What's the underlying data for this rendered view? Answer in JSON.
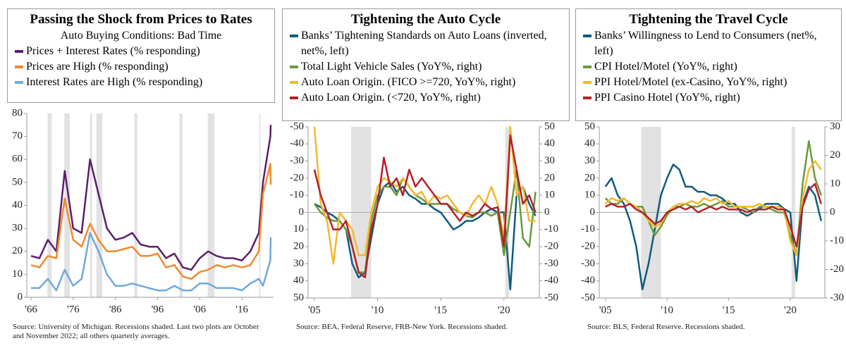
{
  "chart_data": [
    {
      "type": "line",
      "title": "Passing the Shock from Prices to Rates",
      "legend_title": "Auto Buying Conditions: Bad Time",
      "x": [
        1966,
        1968,
        1970,
        1972,
        1974,
        1976,
        1978,
        1980,
        1982,
        1984,
        1986,
        1988,
        1990,
        1992,
        1994,
        1996,
        1998,
        2000,
        2002,
        2004,
        2006,
        2008,
        2010,
        2012,
        2014,
        2016,
        2018,
        2020,
        2021,
        2022.75,
        2022.83
      ],
      "xlim": [
        1965,
        2023.5
      ],
      "xticks": [
        {
          "value": 1966,
          "label": "'66"
        },
        {
          "value": 1976,
          "label": "'76"
        },
        {
          "value": 1986,
          "label": "'86"
        },
        {
          "value": 1996,
          "label": "'96"
        },
        {
          "value": 2006,
          "label": "'06"
        },
        {
          "value": 2016,
          "label": "'16"
        }
      ],
      "ylim": [
        0,
        80
      ],
      "yticks": [
        0,
        10,
        20,
        30,
        40,
        50,
        60,
        70,
        80
      ],
      "recessions": [
        [
          1969.9,
          1970.9
        ],
        [
          1973.9,
          1975.2
        ],
        [
          1980.0,
          1980.5
        ],
        [
          1981.5,
          1982.9
        ],
        [
          1990.5,
          1991.2
        ],
        [
          2001.2,
          2001.9
        ],
        [
          2007.9,
          2009.5
        ],
        [
          2020.1,
          2020.4
        ]
      ],
      "series": [
        {
          "name": "Prices + Interest Rates (% responding)",
          "color": "#5b1f6b",
          "values": [
            18,
            17,
            25,
            20,
            55,
            30,
            28,
            60,
            45,
            30,
            25,
            26,
            28,
            23,
            22,
            22,
            17,
            19,
            13,
            12,
            17,
            20,
            18,
            17,
            17,
            16,
            20,
            28,
            50,
            70,
            75
          ]
        },
        {
          "name": "Prices are High (% responding)",
          "color": "#f08a2c",
          "values": [
            14,
            13,
            18,
            17,
            43,
            25,
            22,
            32,
            25,
            20,
            20,
            21,
            22,
            18,
            18,
            19,
            13,
            14,
            9,
            8,
            11,
            12,
            14,
            13,
            14,
            13,
            14,
            20,
            45,
            58,
            49
          ]
        },
        {
          "name": "Interest Rates are High (% responding)",
          "color": "#6fa8dc",
          "values": [
            4,
            4,
            8,
            3,
            12,
            5,
            8,
            28,
            20,
            10,
            5,
            5,
            6,
            5,
            4,
            3,
            3,
            5,
            3,
            3,
            6,
            6,
            4,
            4,
            4,
            3,
            6,
            8,
            5,
            16,
            26
          ]
        }
      ],
      "source": "Source: University of Michigan. Recessions shaded. Last two plots are October and November 2022; all others quarterly averages."
    },
    {
      "type": "line",
      "title": "Tightening the Auto Cycle",
      "x": [
        2005,
        2005.5,
        2006,
        2006.5,
        2007,
        2007.5,
        2008,
        2008.5,
        2009,
        2009.5,
        2010,
        2010.5,
        2011,
        2011.5,
        2012,
        2012.5,
        2013,
        2013.5,
        2014,
        2014.5,
        2015,
        2015.5,
        2016,
        2016.5,
        2017,
        2017.5,
        2018,
        2018.5,
        2019,
        2019.5,
        2020,
        2020.5,
        2021,
        2021.5,
        2022,
        2022.5
      ],
      "xlim": [
        2004.5,
        2022.8
      ],
      "xticks": [
        {
          "value": 2005,
          "label": "'05"
        },
        {
          "value": 2010,
          "label": "'10"
        },
        {
          "value": 2015,
          "label": "'15"
        },
        {
          "value": 2020,
          "label": "'20"
        }
      ],
      "ylim": [
        50,
        -50
      ],
      "yticks": [
        -50,
        -40,
        -30,
        -20,
        -10,
        0,
        10,
        20,
        30,
        40,
        50
      ],
      "y2lim": [
        -50,
        50
      ],
      "y2ticks": [
        -50,
        -40,
        -30,
        -20,
        -10,
        0,
        10,
        20,
        30,
        40,
        50
      ],
      "recessions": [
        [
          2007.9,
          2009.5
        ],
        [
          2020.1,
          2020.4
        ]
      ],
      "series": [
        {
          "name": "Banks’ Tightening Standards on Auto Loans (inverted, net%, left)",
          "color": "#0e5c7e",
          "values": [
            -5,
            -3,
            0,
            2,
            5,
            10,
            30,
            38,
            35,
            15,
            -5,
            -15,
            -18,
            -12,
            -15,
            -10,
            -8,
            -5,
            -5,
            -2,
            0,
            5,
            10,
            8,
            5,
            5,
            3,
            0,
            -2,
            0,
            0,
            45,
            -10,
            -15,
            -5,
            2
          ]
        },
        {
          "name": "Total Light Vehicle Sales (YoY%, right)",
          "color": "#6a9a3a",
          "axis": "y2",
          "values": [
            5,
            0,
            -3,
            -5,
            -5,
            -10,
            -20,
            -35,
            -35,
            -5,
            10,
            15,
            15,
            10,
            20,
            15,
            10,
            8,
            5,
            5,
            5,
            5,
            2,
            0,
            -2,
            -3,
            0,
            0,
            -2,
            0,
            -25,
            0,
            25,
            -15,
            -20,
            12
          ]
        },
        {
          "name": "Auto Loan Origin. (FICO >=720, YoY%, right)",
          "color": "#f5b82e",
          "axis": "y2",
          "values": [
            50,
            5,
            -5,
            -30,
            0,
            -5,
            -10,
            -25,
            -25,
            0,
            15,
            20,
            18,
            15,
            20,
            15,
            10,
            12,
            5,
            10,
            8,
            10,
            5,
            0,
            -2,
            5,
            10,
            5,
            15,
            5,
            -15,
            50,
            10,
            15,
            -5,
            -5
          ]
        },
        {
          "name": "Auto Loan Origin. (<720, YoY%, right)",
          "color": "#b3202a",
          "axis": "y2",
          "values": [
            25,
            10,
            0,
            -10,
            -10,
            -5,
            -20,
            -35,
            -38,
            -10,
            5,
            32,
            15,
            20,
            10,
            25,
            15,
            20,
            15,
            10,
            5,
            5,
            0,
            -5,
            0,
            -2,
            0,
            5,
            2,
            3,
            -20,
            45,
            25,
            5,
            10,
            0
          ]
        }
      ],
      "source": "Source: BEA, Federal Reserve, FRB-New York. Recessions shaded."
    },
    {
      "type": "line",
      "title": "Tightening the Travel Cycle",
      "x": [
        2005,
        2005.5,
        2006,
        2006.5,
        2007,
        2007.5,
        2008,
        2008.5,
        2009,
        2009.5,
        2010,
        2010.5,
        2011,
        2011.5,
        2012,
        2012.5,
        2013,
        2013.5,
        2014,
        2014.5,
        2015,
        2015.5,
        2016,
        2016.5,
        2017,
        2017.5,
        2018,
        2018.5,
        2019,
        2019.5,
        2020,
        2020.5,
        2021,
        2021.5,
        2022,
        2022.5
      ],
      "xlim": [
        2004.5,
        2022.8
      ],
      "xticks": [
        {
          "value": 2005,
          "label": "'05"
        },
        {
          "value": 2010,
          "label": "'10"
        },
        {
          "value": 2015,
          "label": "'15"
        },
        {
          "value": 2020,
          "label": "'20"
        }
      ],
      "ylim": [
        -50,
        50
      ],
      "yticks": [
        -50,
        -40,
        -30,
        -20,
        -10,
        0,
        10,
        20,
        30,
        40,
        50
      ],
      "y2lim": [
        -30,
        30
      ],
      "y2ticks": [
        -30,
        -20,
        -10,
        0,
        10,
        20,
        30
      ],
      "recessions": [
        [
          2007.9,
          2009.5
        ],
        [
          2020.1,
          2020.4
        ]
      ],
      "series": [
        {
          "name": "Banks’ Willingness to Lend to Consumers (net%, left)",
          "color": "#0e5c7e",
          "values": [
            15,
            20,
            10,
            5,
            -5,
            -20,
            -45,
            -30,
            -10,
            10,
            20,
            28,
            25,
            15,
            15,
            12,
            12,
            10,
            10,
            8,
            5,
            5,
            0,
            -2,
            0,
            2,
            5,
            5,
            5,
            2,
            0,
            -40,
            5,
            15,
            10,
            -5
          ]
        },
        {
          "name": "CPI Hotel/Motel (YoY%, right)",
          "color": "#6a9a3a",
          "axis": "y2",
          "values": [
            5,
            3,
            3,
            5,
            3,
            2,
            2,
            -3,
            -8,
            -5,
            -1,
            2,
            2,
            3,
            2,
            2,
            3,
            2,
            3,
            4,
            2,
            2,
            2,
            1,
            0,
            2,
            2,
            1,
            0,
            0,
            -8,
            -15,
            10,
            25,
            12,
            6
          ]
        },
        {
          "name": "PPI Hotel/Motel (ex-Casino, YoY%, right)",
          "color": "#f5b82e",
          "axis": "y2",
          "values": [
            3,
            5,
            4,
            5,
            3,
            2,
            0,
            -3,
            -5,
            -4,
            0,
            2,
            3,
            3,
            4,
            3,
            5,
            4,
            5,
            3,
            4,
            2,
            2,
            2,
            2,
            3,
            2,
            2,
            2,
            1,
            -10,
            -15,
            5,
            15,
            18,
            15
          ]
        },
        {
          "name": "PPI Casino Hotel (YoY%, right)",
          "color": "#b3202a",
          "axis": "y2",
          "values": [
            2,
            3,
            2,
            2,
            3,
            1,
            0,
            -2,
            -4,
            -3,
            0,
            1,
            2,
            1,
            2,
            0,
            1,
            2,
            1,
            2,
            1,
            1,
            1,
            0,
            1,
            1,
            1,
            2,
            1,
            1,
            -5,
            -12,
            2,
            8,
            10,
            3
          ]
        }
      ],
      "source": "Source: BLS, Federal Reserve. Recessions shaded."
    }
  ]
}
